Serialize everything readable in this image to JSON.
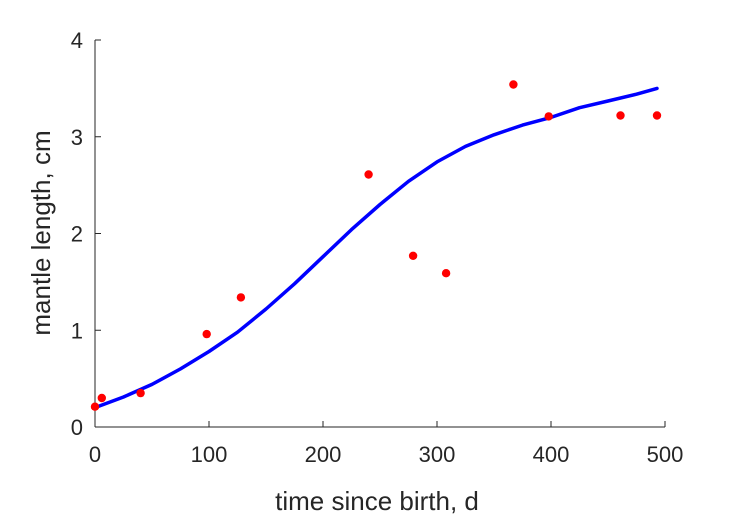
{
  "chart_data": {
    "type": "scatter",
    "xlabel": "time since birth, d",
    "ylabel": "mantle length, cm",
    "xlim": [
      0,
      500
    ],
    "ylim": [
      0,
      4
    ],
    "xticks": [
      0,
      100,
      200,
      300,
      400,
      500
    ],
    "yticks": [
      0,
      1,
      2,
      3,
      4
    ],
    "grid": false,
    "colors": {
      "points": "#ff0000",
      "fit": "#0000ff",
      "axes": "#262626"
    },
    "series": [
      {
        "type": "scatter",
        "x": [
          0,
          6,
          40,
          98,
          128,
          240,
          279,
          308,
          367,
          398,
          461,
          493
        ],
        "y": [
          0.21,
          0.3,
          0.35,
          0.96,
          1.34,
          2.61,
          1.77,
          1.59,
          3.54,
          3.21,
          3.22,
          3.22
        ]
      },
      {
        "type": "line",
        "x": [
          0,
          25,
          50,
          75,
          100,
          125,
          150,
          175,
          200,
          225,
          250,
          275,
          300,
          325,
          350,
          375,
          400,
          425,
          450,
          475,
          493
        ],
        "y": [
          0.2,
          0.31,
          0.44,
          0.6,
          0.78,
          0.98,
          1.22,
          1.48,
          1.76,
          2.04,
          2.3,
          2.54,
          2.74,
          2.9,
          3.02,
          3.12,
          3.2,
          3.3,
          3.37,
          3.44,
          3.5
        ]
      }
    ]
  }
}
